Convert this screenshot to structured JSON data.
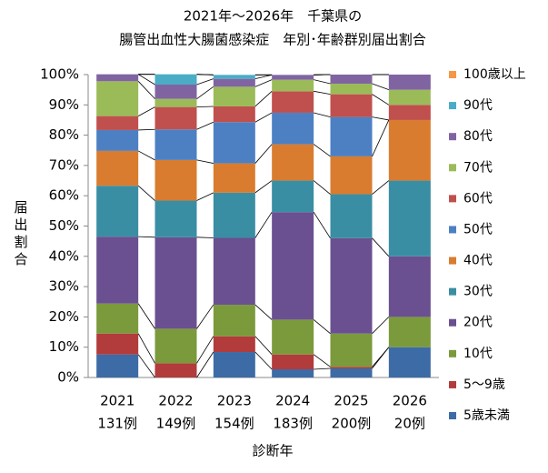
{
  "chart_data": {
    "type": "stacked_bar",
    "title": [
      "2021年～2026年　千葉県の",
      "腸管出血性大腸菌感染症　年別･年齢群別届出割合"
    ],
    "x_label": "診断年",
    "y_label": "届出割合",
    "categories": [
      [
        "2021",
        "131例"
      ],
      [
        "2022",
        "149例"
      ],
      [
        "2023",
        "154例"
      ],
      [
        "2024",
        "183例"
      ],
      [
        "2025",
        "200例"
      ],
      [
        "2026",
        "20例"
      ]
    ],
    "ylim": [
      0,
      100
    ],
    "yticks": [
      {
        "value": 0,
        "label": "0%"
      },
      {
        "value": 10,
        "label": "10%"
      },
      {
        "value": 20,
        "label": "20%"
      },
      {
        "value": 30,
        "label": "30%"
      },
      {
        "value": 40,
        "label": "40%"
      },
      {
        "value": 50,
        "label": "50%"
      },
      {
        "value": 60,
        "label": "60%"
      },
      {
        "value": 70,
        "label": "70%"
      },
      {
        "value": 80,
        "label": "80%"
      },
      {
        "value": 90,
        "label": "90%"
      },
      {
        "value": 100,
        "label": "100%"
      }
    ],
    "series": [
      {
        "name": "5歳未満",
        "color": "#3d6ba6",
        "values": [
          7.6,
          0,
          8.4,
          2.7,
          3.0,
          10
        ]
      },
      {
        "name": "5～9歳",
        "color": "#b23b3b",
        "values": [
          6.9,
          4.7,
          5.2,
          4.9,
          0.5,
          0
        ]
      },
      {
        "name": "10代",
        "color": "#7b9a3c",
        "values": [
          9.9,
          11.4,
          10.4,
          11.5,
          11.0,
          10
        ]
      },
      {
        "name": "20代",
        "color": "#6a5090",
        "values": [
          22.1,
          30.2,
          22.1,
          35.5,
          31.5,
          20
        ]
      },
      {
        "name": "30代",
        "color": "#3a8ea3",
        "values": [
          16.8,
          12.1,
          14.9,
          10.4,
          14.5,
          25
        ]
      },
      {
        "name": "40代",
        "color": "#d97c2f",
        "values": [
          11.5,
          13.4,
          9.7,
          12.0,
          12.5,
          20
        ]
      },
      {
        "name": "50代",
        "color": "#4d80c3",
        "values": [
          6.9,
          10.1,
          13.6,
          10.4,
          13.0,
          0
        ]
      },
      {
        "name": "60代",
        "color": "#c0504d",
        "values": [
          4.6,
          7.4,
          5.2,
          7.1,
          7.5,
          5
        ]
      },
      {
        "name": "70代",
        "color": "#9bbb59",
        "values": [
          11.5,
          2.7,
          6.5,
          3.8,
          3.5,
          5
        ]
      },
      {
        "name": "80代",
        "color": "#8064a2",
        "values": [
          2.3,
          4.7,
          2.6,
          1.6,
          3.0,
          5
        ]
      },
      {
        "name": "90代",
        "color": "#4bacc6",
        "values": [
          0,
          3.4,
          1.3,
          0,
          0,
          0
        ]
      },
      {
        "name": "100歳以上",
        "color": "#f79646",
        "values": [
          0,
          0,
          0,
          0,
          0,
          0
        ]
      }
    ]
  }
}
